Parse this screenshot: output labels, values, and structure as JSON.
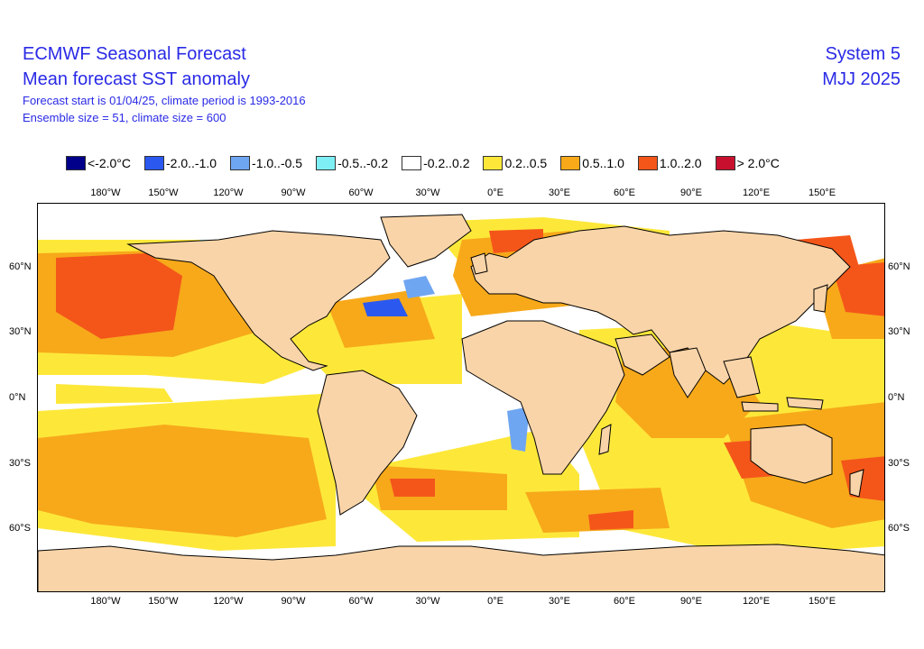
{
  "header": {
    "title": "ECMWF Seasonal Forecast",
    "subtitle": "Mean forecast SST anomaly",
    "info_line1": "Forecast start is 01/04/25, climate period is 1993-2016",
    "info_line2": "Ensemble size = 51, climate size = 600",
    "system": "System 5",
    "season": "MJJ 2025"
  },
  "legend": [
    {
      "label": "<-2.0°C",
      "color": "#00008b"
    },
    {
      "label": "-2.0..-1.0",
      "color": "#2b59f0"
    },
    {
      "label": "-1.0..-0.5",
      "color": "#6fa6f2"
    },
    {
      "label": "-0.5..-0.2",
      "color": "#7ef0f5"
    },
    {
      "label": "-0.2..0.2",
      "color": "#ffffff"
    },
    {
      "label": "0.2..0.5",
      "color": "#fde83a"
    },
    {
      "label": "0.5..1.0",
      "color": "#f7a91a"
    },
    {
      "label": "1.0..2.0",
      "color": "#f4561a"
    },
    {
      "label": "> 2.0°C",
      "color": "#c8102e"
    }
  ],
  "axes": {
    "lon_labels": [
      "180°W",
      "150°W",
      "120°W",
      "90°W",
      "60°W",
      "30°W",
      "0°E",
      "30°E",
      "60°E",
      "90°E",
      "120°E",
      "150°E"
    ],
    "lat_labels": [
      "60°N",
      "30°N",
      "0°N",
      "30°S",
      "60°S"
    ]
  },
  "colors": {
    "land": "#f9d4a8",
    "title_blue": "#2a2ae6"
  }
}
